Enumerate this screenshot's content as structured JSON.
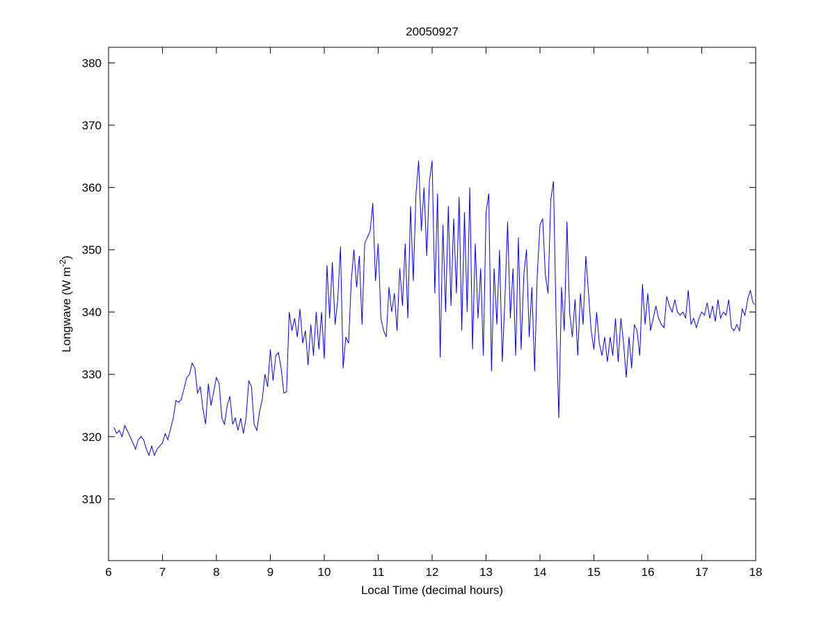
{
  "chart_data": {
    "type": "line",
    "title": "20050927",
    "xlabel": "Local Time (decimal hours)",
    "ylabel": {
      "main": "Longwave (W m",
      "sup": "-2",
      "end": ")"
    },
    "xlim": [
      6,
      18
    ],
    "ylim": [
      300.1,
      382.5
    ],
    "xticks": [
      6,
      7,
      8,
      9,
      10,
      11,
      12,
      13,
      14,
      15,
      16,
      17,
      18
    ],
    "yticks": [
      310,
      320,
      330,
      340,
      350,
      360,
      370,
      380
    ],
    "grid": false,
    "line_color": "#0000ff",
    "series": [
      {
        "name": "Longwave",
        "points": [
          [
            6.1,
            321.5
          ],
          [
            6.15,
            320.5
          ],
          [
            6.2,
            321
          ],
          [
            6.25,
            320
          ],
          [
            6.3,
            321.8
          ],
          [
            6.4,
            320
          ],
          [
            6.5,
            318
          ],
          [
            6.55,
            319.5
          ],
          [
            6.6,
            320
          ],
          [
            6.65,
            319.5
          ],
          [
            6.7,
            318
          ],
          [
            6.75,
            317
          ],
          [
            6.8,
            318.5
          ],
          [
            6.85,
            317
          ],
          [
            6.9,
            318
          ],
          [
            7.0,
            319
          ],
          [
            7.05,
            320.5
          ],
          [
            7.1,
            319.5
          ],
          [
            7.2,
            323
          ],
          [
            7.25,
            325.8
          ],
          [
            7.3,
            325.5
          ],
          [
            7.35,
            326
          ],
          [
            7.45,
            329.5
          ],
          [
            7.5,
            330
          ],
          [
            7.55,
            331.8
          ],
          [
            7.6,
            331
          ],
          [
            7.65,
            327
          ],
          [
            7.7,
            328
          ],
          [
            7.75,
            324.5
          ],
          [
            7.8,
            322
          ],
          [
            7.85,
            328.5
          ],
          [
            7.9,
            325
          ],
          [
            8.0,
            329.5
          ],
          [
            8.05,
            328.5
          ],
          [
            8.1,
            323
          ],
          [
            8.15,
            322
          ],
          [
            8.2,
            325
          ],
          [
            8.25,
            326.5
          ],
          [
            8.3,
            322
          ],
          [
            8.35,
            323
          ],
          [
            8.4,
            321
          ],
          [
            8.45,
            323
          ],
          [
            8.5,
            320.5
          ],
          [
            8.55,
            323
          ],
          [
            8.6,
            329
          ],
          [
            8.65,
            328
          ],
          [
            8.7,
            322
          ],
          [
            8.75,
            321
          ],
          [
            8.8,
            324
          ],
          [
            8.85,
            326
          ],
          [
            8.9,
            330
          ],
          [
            8.95,
            328
          ],
          [
            9.0,
            334
          ],
          [
            9.05,
            329
          ],
          [
            9.1,
            333
          ],
          [
            9.15,
            333.5
          ],
          [
            9.2,
            331
          ],
          [
            9.25,
            327
          ],
          [
            9.3,
            327.2
          ],
          [
            9.35,
            340
          ],
          [
            9.4,
            337
          ],
          [
            9.45,
            339
          ],
          [
            9.5,
            336
          ],
          [
            9.55,
            340.5
          ],
          [
            9.6,
            335
          ],
          [
            9.65,
            337
          ],
          [
            9.7,
            331.5
          ],
          [
            9.75,
            338
          ],
          [
            9.8,
            333
          ],
          [
            9.85,
            340
          ],
          [
            9.9,
            334
          ],
          [
            9.95,
            340
          ],
          [
            10.0,
            332.5
          ],
          [
            10.05,
            347.5
          ],
          [
            10.1,
            339
          ],
          [
            10.15,
            348
          ],
          [
            10.2,
            338
          ],
          [
            10.25,
            342
          ],
          [
            10.3,
            350.5
          ],
          [
            10.35,
            331
          ],
          [
            10.4,
            336
          ],
          [
            10.45,
            335
          ],
          [
            10.5,
            345
          ],
          [
            10.55,
            350
          ],
          [
            10.6,
            344
          ],
          [
            10.65,
            349
          ],
          [
            10.7,
            338
          ],
          [
            10.75,
            351
          ],
          [
            10.8,
            352
          ],
          [
            10.85,
            353
          ],
          [
            10.9,
            357.5
          ],
          [
            10.95,
            345
          ],
          [
            11.0,
            351
          ],
          [
            11.05,
            339
          ],
          [
            11.1,
            337
          ],
          [
            11.15,
            336
          ],
          [
            11.2,
            344
          ],
          [
            11.25,
            340
          ],
          [
            11.3,
            343
          ],
          [
            11.35,
            337
          ],
          [
            11.4,
            347
          ],
          [
            11.45,
            341
          ],
          [
            11.5,
            351
          ],
          [
            11.55,
            339
          ],
          [
            11.6,
            357
          ],
          [
            11.65,
            345
          ],
          [
            11.7,
            359
          ],
          [
            11.75,
            364.3
          ],
          [
            11.8,
            353
          ],
          [
            11.85,
            360
          ],
          [
            11.9,
            349
          ],
          [
            11.95,
            361
          ],
          [
            12.0,
            364.3
          ],
          [
            12.05,
            343
          ],
          [
            12.1,
            359
          ],
          [
            12.15,
            332.7
          ],
          [
            12.2,
            354
          ],
          [
            12.25,
            340
          ],
          [
            12.3,
            357
          ],
          [
            12.35,
            341
          ],
          [
            12.4,
            355
          ],
          [
            12.45,
            343
          ],
          [
            12.5,
            358.5
          ],
          [
            12.55,
            337
          ],
          [
            12.6,
            356
          ],
          [
            12.65,
            340
          ],
          [
            12.7,
            360
          ],
          [
            12.75,
            334
          ],
          [
            12.8,
            351
          ],
          [
            12.85,
            339
          ],
          [
            12.9,
            347
          ],
          [
            12.95,
            333
          ],
          [
            13.0,
            356
          ],
          [
            13.05,
            359
          ],
          [
            13.1,
            330.5
          ],
          [
            13.15,
            347
          ],
          [
            13.2,
            338
          ],
          [
            13.25,
            350
          ],
          [
            13.3,
            332
          ],
          [
            13.35,
            342
          ],
          [
            13.4,
            354.5
          ],
          [
            13.45,
            339
          ],
          [
            13.5,
            347
          ],
          [
            13.55,
            333
          ],
          [
            13.6,
            352
          ],
          [
            13.65,
            334
          ],
          [
            13.7,
            346
          ],
          [
            13.75,
            350
          ],
          [
            13.8,
            336
          ],
          [
            13.85,
            344
          ],
          [
            13.9,
            330.5
          ],
          [
            13.95,
            346
          ],
          [
            14.0,
            354
          ],
          [
            14.05,
            355
          ],
          [
            14.1,
            346
          ],
          [
            14.15,
            343
          ],
          [
            14.2,
            358
          ],
          [
            14.25,
            361
          ],
          [
            14.3,
            338
          ],
          [
            14.35,
            323
          ],
          [
            14.4,
            344
          ],
          [
            14.45,
            337
          ],
          [
            14.5,
            354.5
          ],
          [
            14.55,
            340
          ],
          [
            14.6,
            336
          ],
          [
            14.65,
            342
          ],
          [
            14.7,
            333
          ],
          [
            14.75,
            343
          ],
          [
            14.8,
            338
          ],
          [
            14.85,
            349
          ],
          [
            14.9,
            343
          ],
          [
            14.95,
            337
          ],
          [
            15.0,
            334
          ],
          [
            15.05,
            340
          ],
          [
            15.1,
            335
          ],
          [
            15.15,
            333
          ],
          [
            15.2,
            336
          ],
          [
            15.25,
            332
          ],
          [
            15.3,
            336
          ],
          [
            15.35,
            333
          ],
          [
            15.4,
            339
          ],
          [
            15.45,
            332
          ],
          [
            15.5,
            339
          ],
          [
            15.55,
            335
          ],
          [
            15.6,
            329.5
          ],
          [
            15.65,
            336
          ],
          [
            15.7,
            331
          ],
          [
            15.75,
            338
          ],
          [
            15.8,
            337
          ],
          [
            15.85,
            333
          ],
          [
            15.9,
            344.5
          ],
          [
            15.95,
            338
          ],
          [
            16.0,
            343
          ],
          [
            16.05,
            337
          ],
          [
            16.1,
            339
          ],
          [
            16.15,
            341
          ],
          [
            16.2,
            339
          ],
          [
            16.25,
            338
          ],
          [
            16.3,
            337.5
          ],
          [
            16.35,
            342.5
          ],
          [
            16.4,
            341
          ],
          [
            16.45,
            340
          ],
          [
            16.5,
            342
          ],
          [
            16.55,
            340
          ],
          [
            16.6,
            339.5
          ],
          [
            16.65,
            340
          ],
          [
            16.7,
            339
          ],
          [
            16.75,
            343.5
          ],
          [
            16.8,
            338
          ],
          [
            16.85,
            339
          ],
          [
            16.9,
            337.5
          ],
          [
            16.95,
            339
          ],
          [
            17.0,
            340
          ],
          [
            17.05,
            339.5
          ],
          [
            17.1,
            341.5
          ],
          [
            17.15,
            339
          ],
          [
            17.2,
            341
          ],
          [
            17.25,
            338.5
          ],
          [
            17.3,
            342
          ],
          [
            17.35,
            339
          ],
          [
            17.4,
            340
          ],
          [
            17.45,
            339.5
          ],
          [
            17.5,
            342
          ],
          [
            17.55,
            337.5
          ],
          [
            17.6,
            337
          ],
          [
            17.65,
            338
          ],
          [
            17.7,
            337
          ],
          [
            17.75,
            340.5
          ],
          [
            17.8,
            339.5
          ],
          [
            17.85,
            342
          ],
          [
            17.9,
            343.5
          ],
          [
            17.95,
            341.5
          ],
          [
            17.98,
            341.2
          ]
        ]
      }
    ]
  }
}
